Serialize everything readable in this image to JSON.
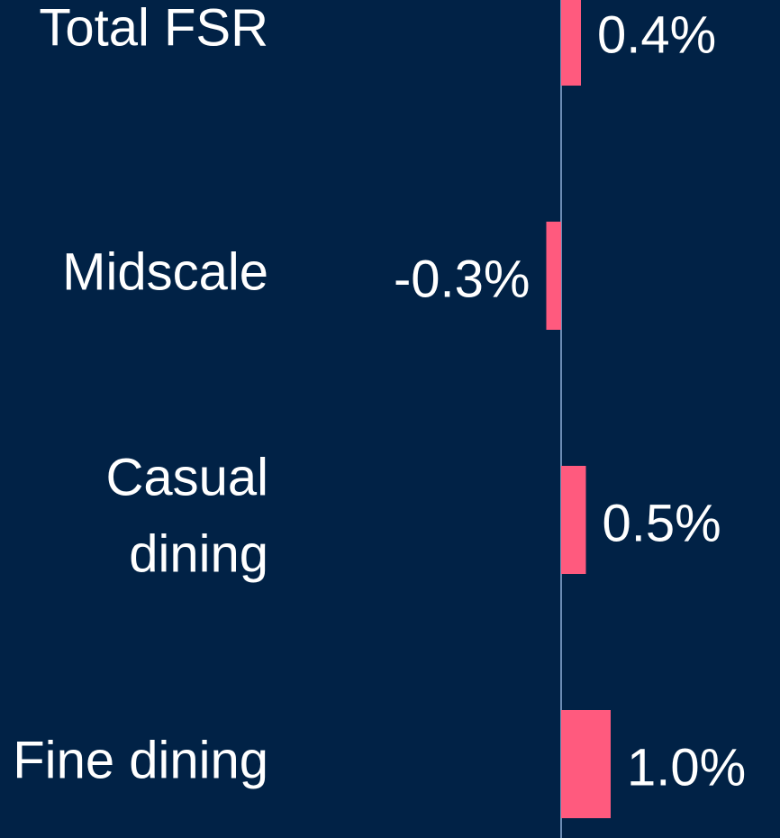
{
  "chart_data": {
    "type": "hbar",
    "categories": [
      "Total FSR",
      "Midscale",
      "Casual dining",
      "Fine dining"
    ],
    "values": [
      0.4,
      -0.3,
      0.5,
      1.0
    ],
    "value_labels": [
      "0.4%",
      "-0.3%",
      "0.5%",
      "1.0%"
    ],
    "color": "#ff5a7e"
  }
}
